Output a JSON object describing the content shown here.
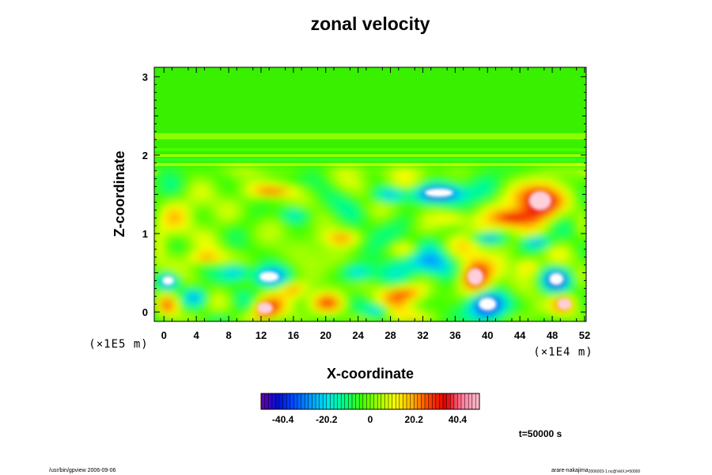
{
  "chart_data": {
    "type": "heatmap",
    "title": "zonal velocity",
    "xlabel": "X-coordinate",
    "ylabel": "Z-coordinate",
    "x_scale_label": "(×1E4 m)",
    "y_scale_label": "(×1E5 m)",
    "xlim": [
      -1.2,
      52.2
    ],
    "ylim": [
      -0.12,
      3.12
    ],
    "x_ticks": [
      "0",
      "4",
      "8",
      "12",
      "16",
      "20",
      "24",
      "28",
      "32",
      "36",
      "40",
      "44",
      "48",
      "52"
    ],
    "y_ticks": [
      "0",
      "1",
      "2",
      "3"
    ],
    "colorbar": {
      "ticks": [
        "-40.4",
        "-20.2",
        "0",
        "20.2",
        "40.4"
      ],
      "range": [
        -50.5,
        50.5
      ],
      "colors": [
        "#6a00a8",
        "#0010d0",
        "#0050ff",
        "#00a0ff",
        "#00e8e8",
        "#00ff80",
        "#40ff00",
        "#a0ff00",
        "#ffff00",
        "#ffb000",
        "#ff4000",
        "#e00000",
        "#ff80a0",
        "#ffc0d0"
      ]
    },
    "time_label": "t=50000 s",
    "background_color": "#38f000"
  },
  "footer": {
    "left": "/usr/bin/gpview 2006-09-06",
    "right": "arare-nakajima",
    "right_sub": "2006003-1.nc@VelX,t=50000"
  }
}
